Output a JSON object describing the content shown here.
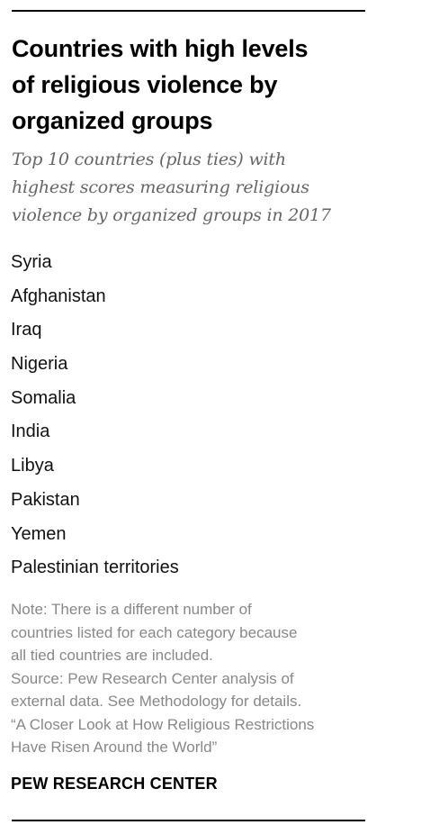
{
  "header": {
    "title_lines": [
      "Countries with high levels",
      "of religious violence by",
      "organized groups"
    ],
    "subtitle_lines": [
      "Top 10 countries (plus ties) with",
      "highest scores measuring religious",
      "violence by organized groups in 2017"
    ]
  },
  "countries": [
    "Syria",
    "Afghanistan",
    "Iraq",
    "Nigeria",
    "Somalia",
    "India",
    "Libya",
    "Pakistan",
    "Yemen",
    "Palestinian territories"
  ],
  "note_lines": [
    "Note: There is a different number of",
    "countries listed for each category because",
    "all tied countries are included.",
    "Source: Pew Research Center analysis of",
    "external data. See Methodology for details.",
    "“A Closer Look at How Religious Restrictions",
    "Have Risen Around the World”"
  ],
  "footer": {
    "brand": "PEW RESEARCH CENTER"
  }
}
